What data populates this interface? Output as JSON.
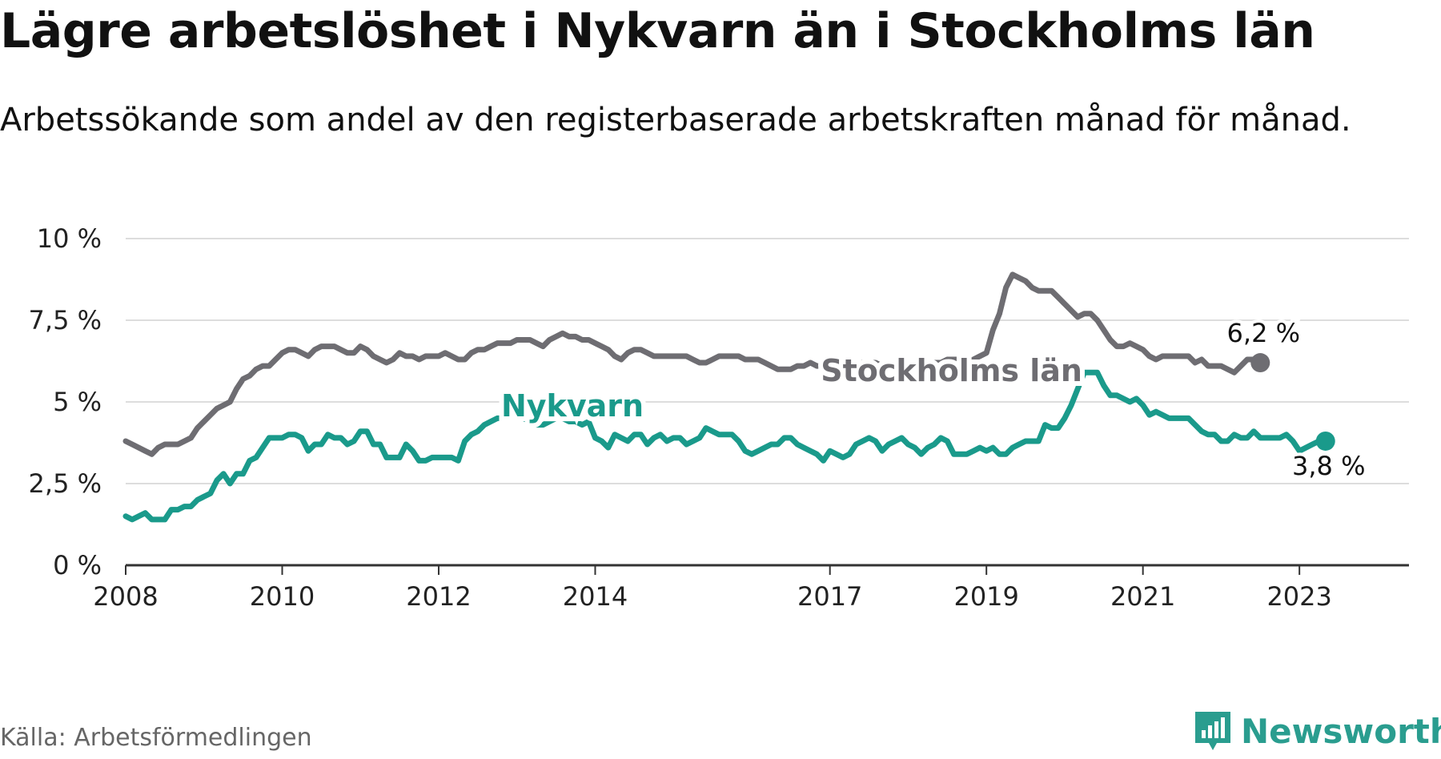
{
  "title": "Lägre arbetslöshet i Nykvarn än i Stockholms län",
  "subtitle": "Arbetssökande som andel av den registerbaserade arbetskraften månad för månad.",
  "source": "Källa: Arbetsförmedlingen",
  "brand": "Newsworthy",
  "colors": {
    "stockholm": "#6e6d72",
    "nykvarn": "#1a9a8b",
    "grid": "#dddddd",
    "axis": "#333333",
    "brand": "#2a9d8f"
  },
  "chart_data": {
    "type": "line",
    "title": "Lägre arbetslöshet i Nykvarn än i Stockholms län",
    "xlabel": "",
    "ylabel": "",
    "x_start": "2008-01",
    "x_end": "2023-09",
    "xlim": [
      2008.0,
      2024.4
    ],
    "ylim": [
      0,
      10
    ],
    "grid": true,
    "yticks": [
      {
        "value": 0,
        "label": "0 %"
      },
      {
        "value": 2.5,
        "label": "2,5 %"
      },
      {
        "value": 5,
        "label": "5 %"
      },
      {
        "value": 7.5,
        "label": "7,5 %"
      },
      {
        "value": 10,
        "label": "10 %"
      }
    ],
    "xticks": [
      {
        "value": 2008,
        "label": "2008"
      },
      {
        "value": 2010,
        "label": "2010"
      },
      {
        "value": 2012,
        "label": "2012"
      },
      {
        "value": 2014,
        "label": "2014"
      },
      {
        "value": 2017,
        "label": "2017"
      },
      {
        "value": 2019,
        "label": "2019"
      },
      {
        "value": 2021,
        "label": "2021"
      },
      {
        "value": 2023,
        "label": "2023"
      }
    ],
    "series": [
      {
        "name": "Stockholms län",
        "key": "stockholm",
        "end_label": "6,2 %",
        "values": [
          3.8,
          3.7,
          3.6,
          3.5,
          3.4,
          3.6,
          3.7,
          3.7,
          3.7,
          3.8,
          3.9,
          4.2,
          4.4,
          4.6,
          4.8,
          4.9,
          5.0,
          5.4,
          5.7,
          5.8,
          6.0,
          6.1,
          6.1,
          6.3,
          6.5,
          6.6,
          6.6,
          6.5,
          6.4,
          6.6,
          6.7,
          6.7,
          6.7,
          6.6,
          6.5,
          6.5,
          6.7,
          6.6,
          6.4,
          6.3,
          6.2,
          6.3,
          6.5,
          6.4,
          6.4,
          6.3,
          6.4,
          6.4,
          6.4,
          6.5,
          6.4,
          6.3,
          6.3,
          6.5,
          6.6,
          6.6,
          6.7,
          6.8,
          6.8,
          6.8,
          6.9,
          6.9,
          6.9,
          6.8,
          6.7,
          6.9,
          7.0,
          7.1,
          7.0,
          7.0,
          6.9,
          6.9,
          6.8,
          6.7,
          6.6,
          6.4,
          6.3,
          6.5,
          6.6,
          6.6,
          6.5,
          6.4,
          6.4,
          6.4,
          6.4,
          6.4,
          6.4,
          6.3,
          6.2,
          6.2,
          6.3,
          6.4,
          6.4,
          6.4,
          6.4,
          6.3,
          6.3,
          6.3,
          6.2,
          6.1,
          6.0,
          6.0,
          6.0,
          6.1,
          6.1,
          6.2,
          6.1,
          6.1,
          6.0,
          6.0,
          6.0,
          6.1,
          6.2,
          6.2,
          6.2,
          6.2,
          6.1,
          6.1,
          6.0,
          5.9,
          6.0,
          6.1,
          6.1,
          6.2,
          6.2,
          6.2,
          6.3,
          6.3,
          6.3,
          6.2,
          6.3,
          6.4,
          6.5,
          7.2,
          7.7,
          8.5,
          8.9,
          8.8,
          8.7,
          8.5,
          8.4,
          8.4,
          8.4,
          8.2,
          8.0,
          7.8,
          7.6,
          7.7,
          7.7,
          7.5,
          7.2,
          6.9,
          6.7,
          6.7,
          6.8,
          6.7,
          6.6,
          6.4,
          6.3,
          6.4,
          6.4,
          6.4,
          6.4,
          6.4,
          6.2,
          6.3,
          6.1,
          6.1,
          6.1,
          6.0,
          5.9,
          6.1,
          6.3,
          6.3,
          6.2
        ]
      },
      {
        "name": "Nykvarn",
        "key": "nykvarn",
        "end_label": "3,8 %",
        "values": [
          1.5,
          1.4,
          1.5,
          1.6,
          1.4,
          1.4,
          1.4,
          1.7,
          1.7,
          1.8,
          1.8,
          2.0,
          2.1,
          2.2,
          2.6,
          2.8,
          2.5,
          2.8,
          2.8,
          3.2,
          3.3,
          3.6,
          3.9,
          3.9,
          3.9,
          4.0,
          4.0,
          3.9,
          3.5,
          3.7,
          3.7,
          4.0,
          3.9,
          3.9,
          3.7,
          3.8,
          4.1,
          4.1,
          3.7,
          3.7,
          3.3,
          3.3,
          3.3,
          3.7,
          3.5,
          3.2,
          3.2,
          3.3,
          3.3,
          3.3,
          3.3,
          3.2,
          3.8,
          4.0,
          4.1,
          4.3,
          4.4,
          4.5,
          4.5,
          4.6,
          4.6,
          4.5,
          4.4,
          4.3,
          4.3,
          4.4,
          4.5,
          4.5,
          4.4,
          4.4,
          4.3,
          4.4,
          3.9,
          3.8,
          3.6,
          4.0,
          3.9,
          3.8,
          4.0,
          4.0,
          3.7,
          3.9,
          4.0,
          3.8,
          3.9,
          3.9,
          3.7,
          3.8,
          3.9,
          4.2,
          4.1,
          4.0,
          4.0,
          4.0,
          3.8,
          3.5,
          3.4,
          3.5,
          3.6,
          3.7,
          3.7,
          3.9,
          3.9,
          3.7,
          3.6,
          3.5,
          3.4,
          3.2,
          3.5,
          3.4,
          3.3,
          3.4,
          3.7,
          3.8,
          3.9,
          3.8,
          3.5,
          3.7,
          3.8,
          3.9,
          3.7,
          3.6,
          3.4,
          3.6,
          3.7,
          3.9,
          3.8,
          3.4,
          3.4,
          3.4,
          3.5,
          3.6,
          3.5,
          3.6,
          3.4,
          3.4,
          3.6,
          3.7,
          3.8,
          3.8,
          3.8,
          4.3,
          4.2,
          4.2,
          4.5,
          4.9,
          5.4,
          5.9,
          5.9,
          5.9,
          5.5,
          5.2,
          5.2,
          5.1,
          5.0,
          5.1,
          4.9,
          4.6,
          4.7,
          4.6,
          4.5,
          4.5,
          4.5,
          4.5,
          4.3,
          4.1,
          4.0,
          4.0,
          3.8,
          3.8,
          4.0,
          3.9,
          3.9,
          4.1,
          3.9,
          3.9,
          3.9,
          3.9,
          4.0,
          3.8,
          3.5,
          3.6,
          3.7,
          3.8,
          3.8
        ]
      }
    ],
    "annotations": [
      {
        "text": "Stockholms län",
        "series": "stockholm"
      },
      {
        "text": "Nykvarn",
        "series": "nykvarn"
      }
    ]
  }
}
